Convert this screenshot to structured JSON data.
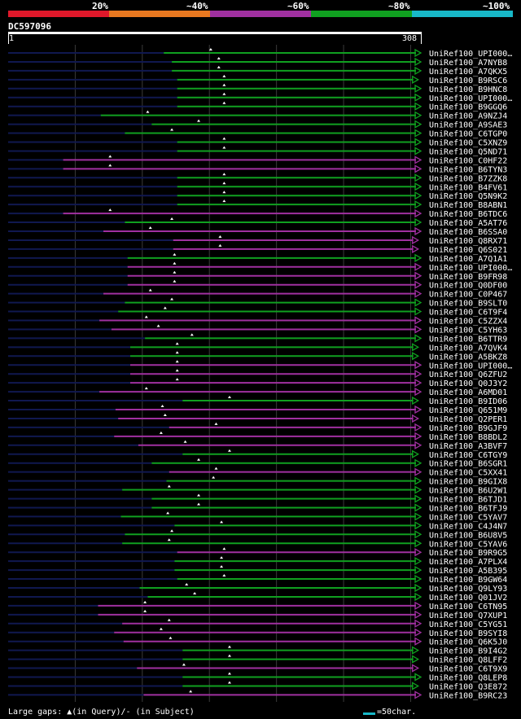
{
  "legend": {
    "segments": [
      {
        "label": "20%",
        "color": "#e0182a"
      },
      {
        "label": "~40%",
        "color": "#e87820"
      },
      {
        "label": "~60%",
        "color": "#a030a0"
      },
      {
        "label": "~80%",
        "color": "#10a020"
      },
      {
        "label": "~100%",
        "color": "#18b8c8"
      }
    ]
  },
  "query": {
    "name": "DC597096",
    "start": "1",
    "end": "308"
  },
  "colors": {
    "green": "#10a020",
    "purple": "#a030a0",
    "navy": "#101850",
    "gap": "#ffffff"
  },
  "hits": [
    {
      "label": "UniRef100_UPI000…",
      "color": "green",
      "start": 117,
      "end": 308
    },
    {
      "label": "UniRef100_A7NYB8",
      "color": "green",
      "start": 123,
      "end": 308
    },
    {
      "label": "UniRef100_A7QKX5",
      "color": "green",
      "start": 123,
      "end": 308
    },
    {
      "label": "UniRef100_B9RSC6",
      "color": "green",
      "start": 127,
      "end": 306
    },
    {
      "label": "UniRef100_B9HNC8",
      "color": "green",
      "start": 127,
      "end": 308
    },
    {
      "label": "UniRef100_UPI000…",
      "color": "green",
      "start": 127,
      "end": 308
    },
    {
      "label": "UniRef100_B9GGQ6",
      "color": "green",
      "start": 127,
      "end": 308
    },
    {
      "label": "UniRef100_A9NZJ4",
      "color": "green",
      "start": 70,
      "end": 308
    },
    {
      "label": "UniRef100_A9SAE3",
      "color": "green",
      "start": 108,
      "end": 308
    },
    {
      "label": "UniRef100_C6TGP0",
      "color": "green",
      "start": 88,
      "end": 308
    },
    {
      "label": "UniRef100_C5XNZ9",
      "color": "green",
      "start": 127,
      "end": 308
    },
    {
      "label": "UniRef100_Q5ND71",
      "color": "green",
      "start": 127,
      "end": 308
    },
    {
      "label": "UniRef100_C0HF22",
      "color": "purple",
      "start": 42,
      "end": 308
    },
    {
      "label": "UniRef100_B6TYN3",
      "color": "purple",
      "start": 42,
      "end": 308
    },
    {
      "label": "UniRef100_B7ZZK8",
      "color": "green",
      "start": 127,
      "end": 308
    },
    {
      "label": "UniRef100_B4FV61",
      "color": "green",
      "start": 127,
      "end": 308
    },
    {
      "label": "UniRef100_Q5N9K2",
      "color": "green",
      "start": 127,
      "end": 308
    },
    {
      "label": "UniRef100_B8ABN1",
      "color": "green",
      "start": 127,
      "end": 308
    },
    {
      "label": "UniRef100_B6TDC6",
      "color": "purple",
      "start": 42,
      "end": 308
    },
    {
      "label": "UniRef100_A5AT76",
      "color": "green",
      "start": 88,
      "end": 308
    },
    {
      "label": "UniRef100_B6SSA0",
      "color": "purple",
      "start": 72,
      "end": 308
    },
    {
      "label": "UniRef100_Q8RX71",
      "color": "purple",
      "start": 124,
      "end": 306
    },
    {
      "label": "UniRef100_Q6S021",
      "color": "purple",
      "start": 124,
      "end": 306
    },
    {
      "label": "UniRef100_A7Q1A1",
      "color": "green",
      "start": 90,
      "end": 308
    },
    {
      "label": "UniRef100_UPI000…",
      "color": "purple",
      "start": 90,
      "end": 308
    },
    {
      "label": "UniRef100_B9FR98",
      "color": "purple",
      "start": 90,
      "end": 308
    },
    {
      "label": "UniRef100_Q0DF00",
      "color": "purple",
      "start": 90,
      "end": 308
    },
    {
      "label": "UniRef100_C0P467",
      "color": "purple",
      "start": 72,
      "end": 308
    },
    {
      "label": "UniRef100_B9SLT0",
      "color": "green",
      "start": 88,
      "end": 308
    },
    {
      "label": "UniRef100_C6T9F4",
      "color": "green",
      "start": 83,
      "end": 308
    },
    {
      "label": "UniRef100_C5ZZX4",
      "color": "purple",
      "start": 69,
      "end": 308
    },
    {
      "label": "UniRef100_C5YH63",
      "color": "purple",
      "start": 78,
      "end": 308
    },
    {
      "label": "UniRef100_B6TTR9",
      "color": "green",
      "start": 103,
      "end": 308
    },
    {
      "label": "UniRef100_A7QVK4",
      "color": "green",
      "start": 92,
      "end": 306
    },
    {
      "label": "UniRef100_A5BKZ8",
      "color": "green",
      "start": 92,
      "end": 306
    },
    {
      "label": "UniRef100_UPI000…",
      "color": "purple",
      "start": 92,
      "end": 308
    },
    {
      "label": "UniRef100_Q6ZFU2",
      "color": "purple",
      "start": 92,
      "end": 308
    },
    {
      "label": "UniRef100_Q0J3Y2",
      "color": "purple",
      "start": 92,
      "end": 308
    },
    {
      "label": "UniRef100_A6MD01",
      "color": "purple",
      "start": 69,
      "end": 308
    },
    {
      "label": "UniRef100_B9ID06",
      "color": "green",
      "start": 131,
      "end": 306
    },
    {
      "label": "UniRef100_Q651M9",
      "color": "purple",
      "start": 81,
      "end": 308
    },
    {
      "label": "UniRef100_Q2PER1",
      "color": "purple",
      "start": 83,
      "end": 306
    },
    {
      "label": "UniRef100_B9GJF9",
      "color": "purple",
      "start": 121,
      "end": 308
    },
    {
      "label": "UniRef100_B8BDL2",
      "color": "purple",
      "start": 80,
      "end": 308
    },
    {
      "label": "UniRef100_A3BVF7",
      "color": "purple",
      "start": 98,
      "end": 308
    },
    {
      "label": "UniRef100_C6TGY9",
      "color": "green",
      "start": 131,
      "end": 306
    },
    {
      "label": "UniRef100_B6SGR1",
      "color": "green",
      "start": 108,
      "end": 308
    },
    {
      "label": "UniRef100_C5XX41",
      "color": "purple",
      "start": 121,
      "end": 308
    },
    {
      "label": "UniRef100_B9GIX8",
      "color": "green",
      "start": 119,
      "end": 308
    },
    {
      "label": "UniRef100_B6U2W1",
      "color": "green",
      "start": 86,
      "end": 308
    },
    {
      "label": "UniRef100_B6TJD1",
      "color": "green",
      "start": 108,
      "end": 308
    },
    {
      "label": "UniRef100_B6TFJ9",
      "color": "green",
      "start": 108,
      "end": 308
    },
    {
      "label": "UniRef100_C5YAV7",
      "color": "green",
      "start": 85,
      "end": 308
    },
    {
      "label": "UniRef100_C4J4N7",
      "color": "green",
      "start": 125,
      "end": 308
    },
    {
      "label": "UniRef100_B6U8V5",
      "color": "green",
      "start": 88,
      "end": 308
    },
    {
      "label": "UniRef100_C5YAV6",
      "color": "green",
      "start": 86,
      "end": 308
    },
    {
      "label": "UniRef100_B9R9G5",
      "color": "purple",
      "start": 127,
      "end": 308
    },
    {
      "label": "UniRef100_A7PLX4",
      "color": "green",
      "start": 125,
      "end": 308
    },
    {
      "label": "UniRef100_A5B395",
      "color": "green",
      "start": 125,
      "end": 308
    },
    {
      "label": "UniRef100_B9GW64",
      "color": "green",
      "start": 127,
      "end": 308
    },
    {
      "label": "UniRef100_Q9LY93",
      "color": "green",
      "start": 99,
      "end": 308
    },
    {
      "label": "UniRef100_Q01JV2",
      "color": "green",
      "start": 105,
      "end": 308
    },
    {
      "label": "UniRef100_C6TN95",
      "color": "purple",
      "start": 68,
      "end": 308
    },
    {
      "label": "UniRef100_Q7XUP1",
      "color": "purple",
      "start": 68,
      "end": 308
    },
    {
      "label": "UniRef100_C5YG51",
      "color": "purple",
      "start": 86,
      "end": 308
    },
    {
      "label": "UniRef100_B9SYI8",
      "color": "purple",
      "start": 80,
      "end": 308
    },
    {
      "label": "UniRef100_Q6K5J0",
      "color": "purple",
      "start": 87,
      "end": 308
    },
    {
      "label": "UniRef100_B9I4G2",
      "color": "green",
      "start": 131,
      "end": 306
    },
    {
      "label": "UniRef100_Q8LFF2",
      "color": "green",
      "start": 131,
      "end": 306
    },
    {
      "label": "UniRef100_C6T9X9",
      "color": "purple",
      "start": 97,
      "end": 306
    },
    {
      "label": "UniRef100_Q8LEP8",
      "color": "green",
      "start": 131,
      "end": 308
    },
    {
      "label": "UniRef100_Q3E872",
      "color": "green",
      "start": 131,
      "end": 306
    },
    {
      "label": "UniRef100_B9RC23",
      "color": "purple",
      "start": 102,
      "end": 308
    }
  ],
  "footer": {
    "text": "Large gaps: ▲(in Query)/- (in Subject)",
    "scale_text": "=50char."
  }
}
